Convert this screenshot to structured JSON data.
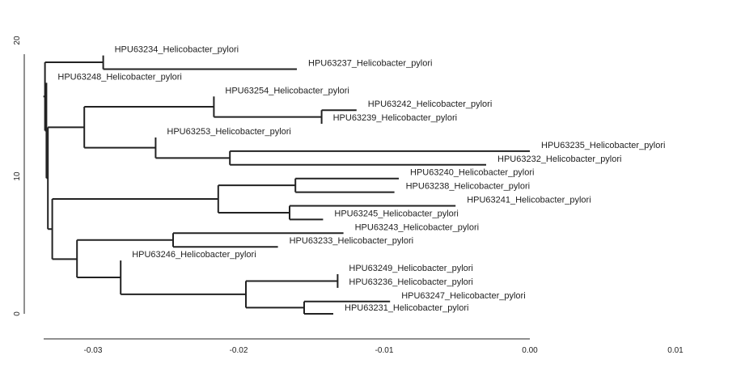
{
  "chart_data": {
    "type": "dendrogram",
    "title": "",
    "xlabel": "",
    "ylabel": "",
    "x_ticks": [
      "-0.03",
      "-0.02",
      "-0.01",
      "0.00",
      "0.01"
    ],
    "x_tick_values": [
      -0.03,
      -0.02,
      -0.01,
      0.0,
      0.01
    ],
    "y_ticks": [
      "0",
      "10",
      "20"
    ],
    "y_tick_values": [
      0,
      10,
      20
    ],
    "xlim": [
      -0.0335,
      0.0
    ],
    "ylim": [
      0,
      19
    ],
    "grid": false,
    "leaves": [
      {
        "label": "HPU63234_Helicobacter_pylori",
        "x": -0.0293,
        "y": 18.9
      },
      {
        "label": "HPU63237_Helicobacter_pylori",
        "x": -0.016,
        "y": 17.9
      },
      {
        "label": "HPU63248_Helicobacter_pylori",
        "x": -0.0332,
        "y": 16.9
      },
      {
        "label": "HPU63254_Helicobacter_pylori",
        "x": -0.0217,
        "y": 15.9
      },
      {
        "label": "HPU63242_Helicobacter_pylori",
        "x": -0.0119,
        "y": 14.9
      },
      {
        "label": "HPU63239_Helicobacter_pylori",
        "x": -0.0143,
        "y": 13.9
      },
      {
        "label": "HPU63253_Helicobacter_pylori",
        "x": -0.0257,
        "y": 12.9
      },
      {
        "label": "HPU63235_Helicobacter_pylori",
        "x": 0.0,
        "y": 11.9
      },
      {
        "label": "HPU63232_Helicobacter_pylori",
        "x": -0.003,
        "y": 10.9
      },
      {
        "label": "HPU63240_Helicobacter_pylori",
        "x": -0.009,
        "y": 9.9
      },
      {
        "label": "HPU63238_Helicobacter_pylori",
        "x": -0.0093,
        "y": 8.9
      },
      {
        "label": "HPU63241_Helicobacter_pylori",
        "x": -0.0051,
        "y": 7.9
      },
      {
        "label": "HPU63245_Helicobacter_pylori",
        "x": -0.0142,
        "y": 6.9
      },
      {
        "label": "HPU63243_Helicobacter_pylori",
        "x": -0.0128,
        "y": 5.9
      },
      {
        "label": "HPU63233_Helicobacter_pylori",
        "x": -0.0173,
        "y": 4.9
      },
      {
        "label": "HPU63246_Helicobacter_pylori",
        "x": -0.0281,
        "y": 3.9
      },
      {
        "label": "HPU63249_Helicobacter_pylori",
        "x": -0.0132,
        "y": 2.9
      },
      {
        "label": "HPU63236_Helicobacter_pylori",
        "x": -0.0132,
        "y": 1.9
      },
      {
        "label": "HPU63247_Helicobacter_pylori",
        "x": -0.0096,
        "y": 0.9
      },
      {
        "label": "HPU63231_Helicobacter_pylori",
        "x": -0.0135,
        "y": 0.0
      }
    ],
    "internal_nodes": [
      {
        "id": "n1",
        "x": -0.0293,
        "y": 18.4,
        "children": [
          "HPU63234_Helicobacter_pylori",
          "HPU63237_Helicobacter_pylori"
        ]
      },
      {
        "id": "n7",
        "x": -0.0143,
        "y": 14.4,
        "children": [
          "HPU63242_Helicobacter_pylori",
          "HPU63239_Helicobacter_pylori"
        ]
      },
      {
        "id": "n8",
        "x": -0.0217,
        "y": 15.15,
        "children": [
          "HPU63254_Helicobacter_pylori",
          "n7"
        ]
      },
      {
        "id": "n9",
        "x": -0.0206,
        "y": 11.4,
        "children": [
          "HPU63235_Helicobacter_pylori",
          "HPU63232_Helicobacter_pylori"
        ]
      },
      {
        "id": "n10",
        "x": -0.0257,
        "y": 12.15,
        "children": [
          "HPU63253_Helicobacter_pylori",
          "n9"
        ]
      },
      {
        "id": "n11",
        "x": -0.0306,
        "y": 13.65,
        "children": [
          "n8",
          "n10"
        ]
      },
      {
        "id": "n12",
        "x": -0.0161,
        "y": 9.4,
        "children": [
          "HPU63240_Helicobacter_pylori",
          "HPU63238_Helicobacter_pylori"
        ]
      },
      {
        "id": "n13",
        "x": -0.0165,
        "y": 7.4,
        "children": [
          "HPU63241_Helicobacter_pylori",
          "HPU63245_Helicobacter_pylori"
        ]
      },
      {
        "id": "n14",
        "x": -0.0214,
        "y": 8.4,
        "children": [
          "n12",
          "n13"
        ]
      },
      {
        "id": "n15",
        "x": -0.0245,
        "y": 5.4,
        "children": [
          "HPU63243_Helicobacter_pylori",
          "HPU63233_Helicobacter_pylori"
        ]
      },
      {
        "id": "n16",
        "x": -0.0132,
        "y": 2.4,
        "children": [
          "HPU63249_Helicobacter_pylori",
          "HPU63236_Helicobacter_pylori"
        ]
      },
      {
        "id": "n17",
        "x": -0.0155,
        "y": 0.45,
        "children": [
          "HPU63247_Helicobacter_pylori",
          "HPU63231_Helicobacter_pylori"
        ]
      },
      {
        "id": "n18",
        "x": -0.0195,
        "y": 1.425,
        "children": [
          "n16",
          "n17"
        ]
      },
      {
        "id": "n19",
        "x": -0.0281,
        "y": 2.6625,
        "children": [
          "HPU63246_Helicobacter_pylori",
          "n18"
        ]
      },
      {
        "id": "n20",
        "x": -0.0311,
        "y": 4.0,
        "children": [
          "n15",
          "n19"
        ]
      },
      {
        "id": "n21",
        "x": -0.0328,
        "y": 6.2,
        "children": [
          "n14",
          "n20"
        ]
      },
      {
        "id": "n22",
        "x": -0.0331,
        "y": 9.925,
        "children": [
          "n11",
          "n21"
        ]
      },
      {
        "id": "n23",
        "x": -0.0332,
        "y": 13.4,
        "children": [
          "HPU63248_Helicobacter_pylori",
          "n22"
        ]
      },
      {
        "id": "n24",
        "x": -0.0333,
        "y": 15.9,
        "children": [
          "n1",
          "n23"
        ]
      }
    ],
    "root": "n24",
    "colors": {
      "lines": "#222222",
      "background": "#ffffff"
    }
  }
}
